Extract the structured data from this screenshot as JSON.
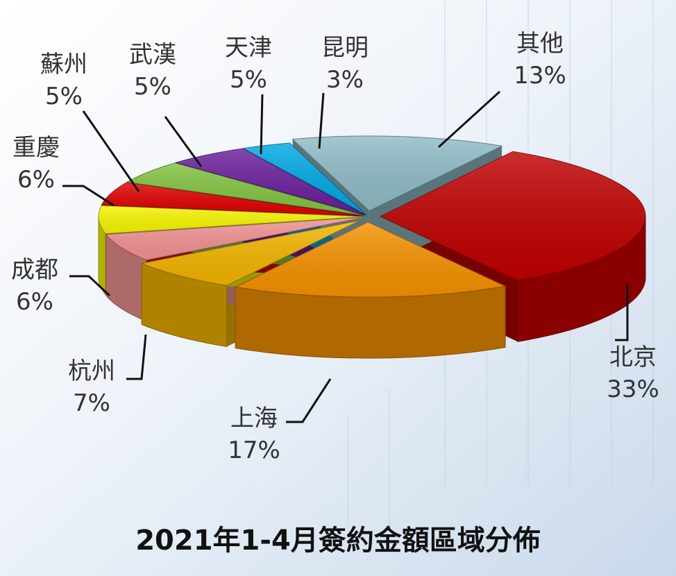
{
  "chart_data": {
    "type": "pie",
    "title": "2021年1-4月簽約金額區域分佈",
    "slices": [
      {
        "label": "北京",
        "value": 33,
        "display": "33%",
        "color": "#c00000"
      },
      {
        "label": "上海",
        "value": 17,
        "display": "17%",
        "color": "#f59100"
      },
      {
        "label": "杭州",
        "value": 7,
        "display": "7%",
        "color": "#f3b400"
      },
      {
        "label": "成都",
        "value": 6,
        "display": "6%",
        "color": "#f29292"
      },
      {
        "label": "重慶",
        "value": 6,
        "display": "6%",
        "color": "#f6f600"
      },
      {
        "label": "蘇州",
        "value": 5,
        "display": "5%",
        "color": "#e00000"
      },
      {
        "label": "武漢",
        "value": 5,
        "display": "5%",
        "color": "#82c341"
      },
      {
        "label": "天津",
        "value": 5,
        "display": "5%",
        "color": "#6a1f9c"
      },
      {
        "label": "昆明",
        "value": 3,
        "display": "3%",
        "color": "#00a8e4"
      },
      {
        "label": "其他",
        "value": 13,
        "display": "13%",
        "color": "#8fbcc6"
      }
    ]
  }
}
